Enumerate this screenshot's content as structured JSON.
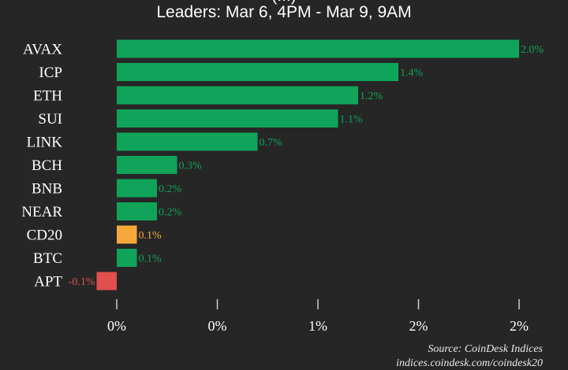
{
  "chart_data": {
    "type": "bar",
    "orientation": "horizontal",
    "title_top_partial": "(...)",
    "title": "Leaders: Mar 6, 4PM - Mar 9, 9AM",
    "categories": [
      "AVAX",
      "ICP",
      "ETH",
      "SUI",
      "LINK",
      "BCH",
      "BNB",
      "NEAR",
      "CD20",
      "BTC",
      "APT"
    ],
    "values": [
      2.0,
      1.4,
      1.2,
      1.1,
      0.7,
      0.3,
      0.2,
      0.2,
      0.1,
      0.1,
      -0.1
    ],
    "value_labels": [
      "2.0%",
      "1.4%",
      "1.2%",
      "1.1%",
      "0.7%",
      "0.3%",
      "0.2%",
      "0.2%",
      "0.1%",
      "0.1%",
      "-0.1%"
    ],
    "bar_colors": [
      "#0fa45a",
      "#0fa45a",
      "#0fa45a",
      "#0fa45a",
      "#0fa45a",
      "#0fa45a",
      "#0fa45a",
      "#0fa45a",
      "#f6a93a",
      "#0fa45a",
      "#e24f4f"
    ],
    "label_colors": [
      "#0fa45a",
      "#0fa45a",
      "#0fa45a",
      "#0fa45a",
      "#0fa45a",
      "#0fa45a",
      "#0fa45a",
      "#0fa45a",
      "#f6a93a",
      "#0fa45a",
      "#e24f4f"
    ],
    "x_ticks": [
      0,
      0.5,
      1.0,
      1.5,
      2.0
    ],
    "x_tick_labels": [
      "0%",
      "0%",
      "1%",
      "2%",
      "2%"
    ],
    "xlim": [
      -0.055,
      2.12
    ],
    "xlabel": "",
    "ylabel": "",
    "grid": false,
    "legend": "none"
  },
  "source": {
    "line1": "Source: CoinDesk Indices",
    "line2": "indices.coindesk.com/coindesk20"
  }
}
